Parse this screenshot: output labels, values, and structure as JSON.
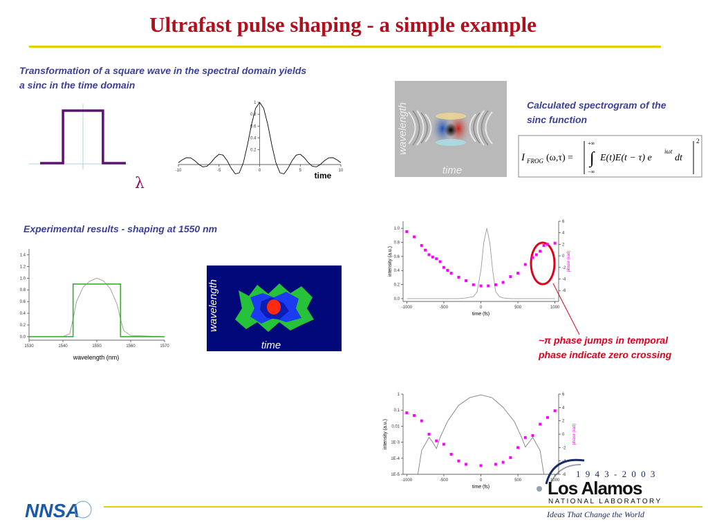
{
  "title": "Ultrafast pulse shaping - a simple example",
  "intro": "Transformation of a square wave in the spectral domain yields a sinc in the time domain",
  "lambda": "λ",
  "calc_spectrogram": {
    "caption": "Calculated spectrogram of the sinc function",
    "ylabel": "wavelength",
    "xlabel": "time"
  },
  "formula": {
    "I": "I",
    "sub": "FROG",
    "args": "(ω,τ) =",
    "upper": "+∞",
    "lower": "−∞",
    "integrand": "E(t)E(t − τ) e",
    "exp": "iωt",
    "dt": "dt",
    "power": "2"
  },
  "experimental": {
    "caption": "Experimental results - shaping at 1550 nm",
    "ylabel": "wavelength",
    "xlabel": "time"
  },
  "annotation": {
    "symbol": "~π",
    "text1": " phase jumps in temporal",
    "text2": "phase indicate zero crossing"
  },
  "logo": {
    "years": "1 9 4 3 - 2 0 0 3",
    "name": "Los Alamos",
    "lab": "NATIONAL LABORATORY",
    "motto": "Ideas That Change the World",
    "nnsa": "NNSA"
  },
  "plots": [
    {
      "type": "line",
      "xlim": [
        -3,
        3
      ],
      "ylim": [
        0,
        1
      ],
      "series": [
        {
          "color": "#5c1370",
          "style": "line",
          "x": [
            -3,
            -1.4,
            -1.4,
            1.4,
            1.4,
            3
          ],
          "values": [
            0,
            0,
            1,
            1,
            0,
            0
          ]
        }
      ]
    },
    {
      "type": "line",
      "xlim": [
        -10,
        10
      ],
      "ylim": [
        -0.05,
        1.0
      ],
      "xlabel": "time",
      "xticks": [
        -10,
        -5,
        0,
        5,
        10
      ],
      "yticks": [
        0.2,
        0.4,
        0.6,
        0.8,
        1
      ],
      "series": [
        {
          "color": "#000000",
          "style": "line",
          "x": [
            -10,
            -9.5,
            -9,
            -8.5,
            -8,
            -7.5,
            -7,
            -6.5,
            -6,
            -5.5,
            -5,
            -4.5,
            -4,
            -3.5,
            -3,
            -2.5,
            -2,
            -1.5,
            -1,
            -0.5,
            0,
            0.5,
            1,
            1.5,
            2,
            2.5,
            3,
            3.5,
            4,
            4.5,
            5,
            5.5,
            6,
            6.5,
            7,
            7.5,
            8,
            8.5,
            9,
            9.5,
            10
          ],
          "values": [
            -0.018,
            0.032,
            0.067,
            0.063,
            0.018,
            -0.045,
            -0.088,
            -0.08,
            -0.018,
            0.066,
            0.124,
            0.11,
            0.018,
            -0.113,
            -0.208,
            -0.189,
            -0.018,
            0.281,
            0.625,
            0.897,
            1,
            0.897,
            0.625,
            0.281,
            -0.018,
            -0.189,
            -0.208,
            -0.113,
            0.018,
            0.11,
            0.124,
            0.066,
            -0.018,
            -0.08,
            -0.088,
            -0.045,
            0.018,
            0.063,
            0.067,
            0.032,
            -0.018
          ]
        }
      ]
    },
    {
      "type": "line",
      "xlim": [
        1530,
        1570
      ],
      "ylim": [
        -0.06,
        1.5
      ],
      "xlabel": "wavelength (nm)",
      "xticks": [
        1530,
        1540,
        1550,
        1560,
        1570
      ],
      "yticks": [
        {
          "value": 0,
          "label": "0.0"
        },
        0.2,
        0.4,
        0.6,
        0.8,
        {
          "value": 1,
          "label": "1.0"
        },
        1.2,
        1.4
      ],
      "series": [
        {
          "color": "#9a9a9a",
          "style": "line",
          "x": [
            1530,
            1540,
            1542,
            1543,
            1544,
            1546,
            1548,
            1550,
            1552,
            1554,
            1556,
            1557,
            1558,
            1560,
            1570
          ],
          "values": [
            0,
            0,
            0.05,
            0.3,
            0.6,
            0.85,
            0.95,
            1.0,
            0.95,
            0.82,
            0.55,
            0.3,
            0.1,
            0.02,
            0
          ]
        },
        {
          "color": "#3daa3a",
          "style": "line",
          "x": [
            1530,
            1543,
            1543,
            1557,
            1557,
            1570
          ],
          "values": [
            0,
            0,
            0.9,
            0.9,
            0,
            0
          ]
        }
      ]
    },
    {
      "type": "line",
      "xlim": [
        -1050,
        1050
      ],
      "ylim": [
        -0.04,
        1.1
      ],
      "y2lim": [
        -7.9,
        6
      ],
      "xlabel": "time (fs)",
      "ylabel": "intensity (a.u.)",
      "y2label": "phase (rad)",
      "xticks": [
        -1000,
        -500,
        0,
        500,
        1000
      ],
      "yticks": [
        {
          "value": 0,
          "label": "0.0"
        },
        0.2,
        0.4,
        0.6,
        0.8,
        {
          "value": 1,
          "label": "1.0"
        }
      ],
      "y2ticks": [
        -6,
        -4,
        -2,
        0,
        2,
        4,
        6
      ],
      "series": [
        {
          "color": "#9a9a9a",
          "style": "line",
          "x": [
            -1000,
            -300,
            -200,
            -100,
            -50,
            0,
            40,
            80,
            120,
            160,
            200,
            250,
            300,
            400,
            1000
          ],
          "values": [
            0,
            0,
            0.01,
            0.03,
            0.1,
            0.4,
            0.8,
            1.0,
            0.8,
            0.4,
            0.1,
            0.03,
            0.01,
            0,
            0
          ]
        },
        {
          "color": "#ff00ff",
          "style": "markers",
          "axis": "y2",
          "x": [
            -1000,
            -900,
            -800,
            -750,
            -700,
            -650,
            -600,
            -550,
            -500,
            -450,
            -400,
            -300,
            -200,
            -100,
            0,
            100,
            200,
            300,
            400,
            500,
            600,
            700,
            750,
            800,
            850,
            900,
            1000
          ],
          "values": [
            4.2,
            3.3,
            1.8,
            1.0,
            0.2,
            -0.2,
            -0.5,
            -1.0,
            -2.0,
            -2.5,
            -3.0,
            -3.7,
            -4.3,
            -5.0,
            -5.2,
            -5.2,
            -5.0,
            -4.6,
            -3.6,
            -3.0,
            -1.5,
            -0.3,
            0.2,
            0.8,
            1.8,
            2.0,
            2.2
          ]
        }
      ]
    },
    {
      "type": "line",
      "log": true,
      "xlim": [
        -1050,
        1050
      ],
      "ylim": [
        1e-05,
        1
      ],
      "y2lim": [
        -6,
        6
      ],
      "xlabel": "time (fs)",
      "ylabel": "intensity (a.u.)",
      "y2label": "phase (rad)",
      "xticks": [
        -1000,
        -500,
        0,
        500,
        1000
      ],
      "yticks": [
        1,
        0.1,
        0.01,
        {
          "value": 0.001,
          "label": "1E-3"
        },
        {
          "value": 0.0001,
          "label": "1E-4"
        },
        {
          "value": 1e-05,
          "label": "1E-5"
        }
      ],
      "y2ticks": [
        -6,
        -4,
        -2,
        0,
        2,
        4,
        6
      ],
      "series": [
        {
          "color": "#808080",
          "style": "line",
          "x": [
            -850,
            -800,
            -700,
            -650,
            -600,
            -550,
            -450,
            -300,
            -150,
            0,
            150,
            300,
            450,
            550,
            600,
            650,
            700,
            800,
            850
          ],
          "values": [
            1e-05,
            0.0003,
            0.002,
            0.001,
            0.0004,
            0.002,
            0.02,
            0.2,
            0.6,
            0.9,
            0.6,
            0.15,
            0.02,
            0.002,
            0.0005,
            0.001,
            0.002,
            0.0003,
            1e-05
          ]
        },
        {
          "color": "#ff00ff",
          "style": "markers",
          "axis": "y2",
          "x": [
            -1000,
            -900,
            -800,
            -700,
            -600,
            -500,
            -400,
            -300,
            -200,
            0,
            200,
            300,
            400,
            500,
            600,
            700,
            800,
            900,
            1000
          ],
          "values": [
            3.2,
            2.8,
            2,
            0,
            -1,
            -1.5,
            -3,
            -4,
            -4.5,
            -4.7,
            -4.5,
            -4.2,
            -3.5,
            -2,
            -0.5,
            -0.2,
            1.5,
            2.5,
            3.5
          ]
        }
      ]
    }
  ]
}
